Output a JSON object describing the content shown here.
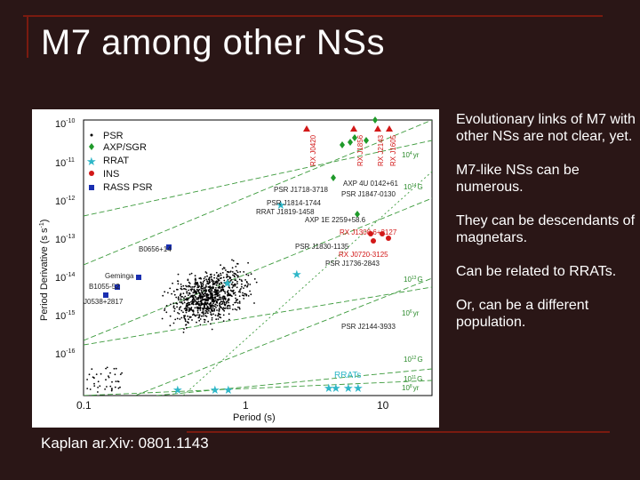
{
  "slide": {
    "title": "M7 among other NSs",
    "credit": "Kaplan ar.Xiv: 0801.1143",
    "bullets": [
      "Evolutionary links of M7 with other NSs are not clear, yet.",
      "M7-like NSs can be numerous.",
      "They can be descendants of magnetars.",
      "Can be related to RRATs.",
      "Or, can be a different population."
    ]
  },
  "colors": {
    "background": "#2a1616",
    "accent": "#7a1a10",
    "psr": "#000000",
    "axp_sgr": "#1f9a2a",
    "rrat": "#2fb7c8",
    "ins": "#d21818",
    "rass_psr": "#1a2fb0",
    "guide_lines": "#3c9a3c"
  },
  "plot": {
    "x_label": "Period (s)",
    "y_label": "Period Derivative (s s",
    "y_label_sup": "-1",
    "y_label_end": ")",
    "x_ticks": [
      "0.1",
      "1",
      "10"
    ],
    "y_ticks": [
      {
        "base": "10",
        "exp": "-10"
      },
      {
        "base": "10",
        "exp": "-11"
      },
      {
        "base": "10",
        "exp": "-12"
      },
      {
        "base": "10",
        "exp": "-13"
      },
      {
        "base": "10",
        "exp": "-14"
      },
      {
        "base": "10",
        "exp": "-15"
      },
      {
        "base": "10",
        "exp": "-16"
      }
    ],
    "legend": [
      "PSR",
      "AXP/SGR",
      "RRAT",
      "INS",
      "RASS PSR"
    ],
    "annotations": {
      "ins_names": [
        "RX J0420",
        "RX J1856",
        "RX J2143",
        "RX J1605"
      ],
      "axp": "AXP 4U 0142+61",
      "psr1718": "PSR J1718-3718",
      "psr1847": "PSR J1847-0130",
      "psr1814": "PSR J1814-1744",
      "rrat1819": "RRAT J1819-1458",
      "axp1e": "AXP 1E 2259+58.6",
      "rx1308": "RX J1308.6+2127",
      "psr1830": "PSR J1830-1135",
      "rx0720": "RX J0720-3125",
      "psr1736": "PSR J1736-2843",
      "b0656": "B0656+14",
      "geminga": "Geminga",
      "b1055": "B1055-52",
      "j0538": "J0538+2817",
      "psr2144": "PSR J2144-3933",
      "rrats": "RRATs",
      "yr_labels": [
        "10",
        "10",
        "10"
      ],
      "yr_exps": [
        "4",
        "6",
        "8"
      ],
      "yr_unit": "yr",
      "g_labels": [
        "10",
        "10",
        "10",
        "10"
      ],
      "g_exps": [
        "14",
        "13",
        "12",
        "11"
      ],
      "g_unit": "G"
    }
  }
}
